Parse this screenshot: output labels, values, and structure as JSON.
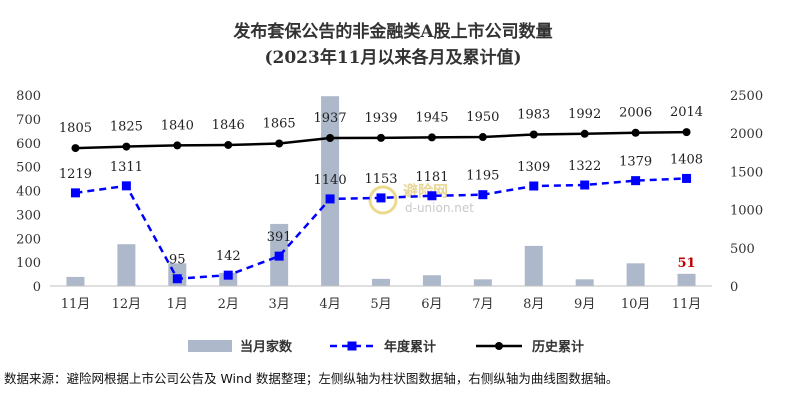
{
  "chart_data": {
    "type": "bar+line",
    "title": "发布套保公告的非金融类A股上市公司数量",
    "subtitle": "(2023年11月以来各月及累计值)",
    "categories": [
      "11月",
      "12月",
      "1月",
      "2月",
      "3月",
      "4月",
      "5月",
      "6月",
      "7月",
      "8月",
      "9月",
      "10月",
      "11月"
    ],
    "y_left": {
      "ticks": [
        0,
        100,
        200,
        300,
        400,
        500,
        600,
        700,
        800
      ],
      "lim": [
        0,
        800
      ]
    },
    "y_right": {
      "ticks": [
        0,
        500,
        1000,
        1500,
        2000,
        2500
      ],
      "lim": [
        0,
        2500
      ]
    },
    "series": [
      {
        "name": "当月家数",
        "type": "bar",
        "axis": "left",
        "values": [
          38,
          175,
          95,
          55,
          260,
          795,
          30,
          45,
          28,
          168,
          28,
          95,
          51
        ],
        "color": "#adb9ca",
        "labels": [
          "",
          "",
          "",
          "",
          "",
          "",
          "",
          "",
          "",
          "",
          "",
          "",
          "51"
        ]
      },
      {
        "name": "年度累计",
        "type": "line-dashed",
        "axis": "right",
        "values": [
          1219,
          1311,
          95,
          142,
          391,
          1140,
          1153,
          1181,
          1195,
          1309,
          1322,
          1379,
          1408
        ],
        "color": "#0000ff"
      },
      {
        "name": "历史累计",
        "type": "line",
        "axis": "right",
        "values": [
          1805,
          1825,
          1840,
          1846,
          1865,
          1937,
          1939,
          1945,
          1950,
          1983,
          1992,
          2006,
          2014
        ],
        "color": "#000000"
      }
    ],
    "legend_position": "bottom",
    "grid": false
  },
  "source_note": "数据来源：避险网根据上市公司公告及 Wind 数据整理；左侧纵轴为柱状图数据轴，右侧纵轴为曲线图数据轴。",
  "watermark": {
    "logo_text": "避险网",
    "url": "d-union.net"
  }
}
